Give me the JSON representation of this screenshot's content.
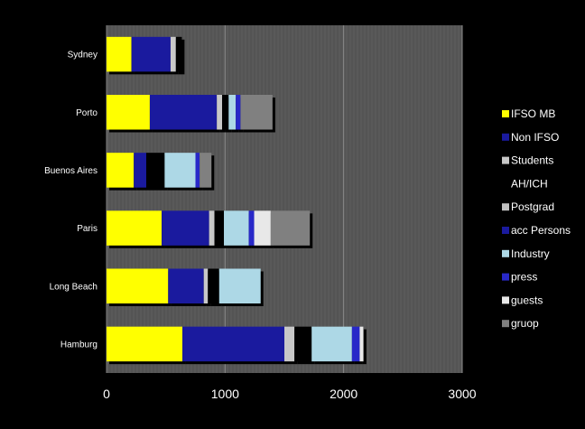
{
  "chart_data": {
    "type": "bar",
    "orientation": "horizontal",
    "stacked": true,
    "categories": [
      "Sydney",
      "Porto",
      "Buenos Aires",
      "Paris",
      "Long Beach",
      "Hamburg"
    ],
    "series": [
      {
        "name": "IFSO MB",
        "color": "#ffff00",
        "values": [
          210,
          365,
          230,
          465,
          520,
          640
        ]
      },
      {
        "name": "Non IFSO",
        "color": "#1a1a9e",
        "values": [
          330,
          565,
          105,
          400,
          300,
          860
        ]
      },
      {
        "name": "Students",
        "color": "#c8c8c8",
        "values": [
          45,
          45,
          0,
          45,
          35,
          85
        ]
      },
      {
        "name": "AH/ICH",
        "color": "#000000",
        "values": [
          50,
          55,
          155,
          80,
          95,
          145
        ]
      },
      {
        "name": "Postgrad",
        "color": "#c0c0c0",
        "values": [
          0,
          0,
          0,
          0,
          0,
          0
        ]
      },
      {
        "name": "acc Persons",
        "color": "#1a1a9e",
        "values": [
          0,
          0,
          0,
          0,
          0,
          0
        ]
      },
      {
        "name": "Industry",
        "color": "#add8e6",
        "values": [
          0,
          60,
          260,
          210,
          350,
          340
        ]
      },
      {
        "name": "press",
        "color": "#2828c8",
        "values": [
          0,
          40,
          35,
          45,
          0,
          65
        ]
      },
      {
        "name": "guests",
        "color": "#e8e8e8",
        "values": [
          0,
          0,
          0,
          140,
          0,
          30
        ]
      },
      {
        "name": "gruop",
        "color": "#808080",
        "values": [
          0,
          270,
          100,
          330,
          0,
          5
        ]
      }
    ],
    "extra_segments_note_free": [],
    "xlim": [
      0,
      3000
    ],
    "xticks": [
      0,
      1000,
      2000,
      3000
    ],
    "grid": "vertical-major",
    "legend_position": "right",
    "plot_background": "#595959",
    "page_background": "#000000"
  }
}
